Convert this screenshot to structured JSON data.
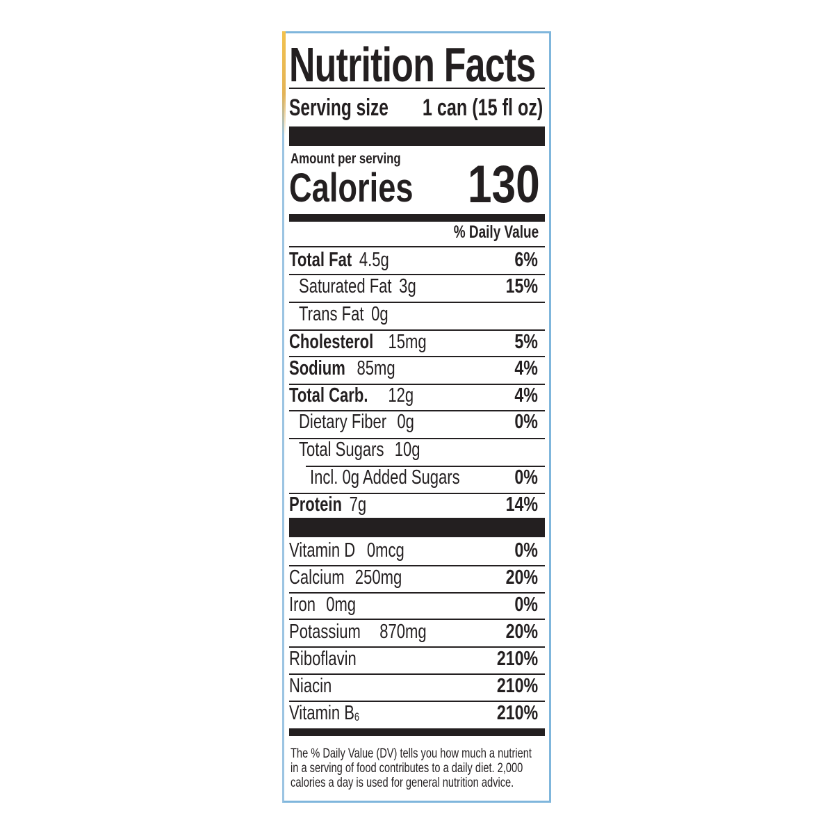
{
  "label": {
    "title": "Nutrition Facts",
    "serving_size_label": "Serving size",
    "serving_size_value": "1 can (15 fl oz)",
    "amount_per_serving": "Amount per serving",
    "calories_label": "Calories",
    "calories_value": "130",
    "daily_value_header": "% Daily Value",
    "nutrients": [
      {
        "name": "Total Fat",
        "amount": "4.5g",
        "dv": "6%"
      },
      {
        "name": "Saturated Fat",
        "amount": "3g",
        "dv": "15%"
      },
      {
        "name": "Trans Fat",
        "amount": "0g",
        "dv": ""
      },
      {
        "name": "Cholesterol",
        "amount": "15mg",
        "dv": "5%"
      },
      {
        "name": "Sodium",
        "amount": "85mg",
        "dv": "4%"
      },
      {
        "name": "Total Carb.",
        "amount": "12g",
        "dv": "4%"
      },
      {
        "name": "Dietary Fiber",
        "amount": "0g",
        "dv": "0%"
      },
      {
        "name": "Total Sugars",
        "amount": "10g",
        "dv": ""
      },
      {
        "name": "Incl. 0g Added Sugars",
        "amount": "",
        "dv": "0%"
      },
      {
        "name": "Protein",
        "amount": "7g",
        "dv": "14%"
      }
    ],
    "vitamins": [
      {
        "name": "Vitamin D",
        "amount": "0mcg",
        "dv": "0%"
      },
      {
        "name": "Calcium",
        "amount": "250mg",
        "dv": "20%"
      },
      {
        "name": "Iron",
        "amount": "0mg",
        "dv": "0%"
      },
      {
        "name": "Potassium",
        "amount": "870mg",
        "dv": "20%"
      },
      {
        "name": "Riboflavin",
        "amount": "",
        "dv": "210%"
      },
      {
        "name": "Niacin",
        "amount": "",
        "dv": "210%"
      },
      {
        "name": "Vitamin B",
        "subscript": "6",
        "amount": "",
        "dv": "210%"
      }
    ],
    "footnote": [
      "The % Daily Value (DV) tells you how much a nutrient",
      "in a serving of food contributes to a daily diet. 2,000",
      "calories a day is used for general nutrition advice."
    ],
    "colors": {
      "ink": "#231f20",
      "border": "#7fb6dc",
      "accent": "#f2c14e"
    }
  }
}
